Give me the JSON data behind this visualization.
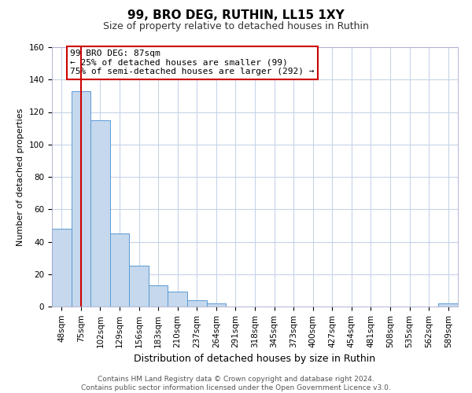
{
  "title": "99, BRO DEG, RUTHIN, LL15 1XY",
  "subtitle": "Size of property relative to detached houses in Ruthin",
  "xlabel": "Distribution of detached houses by size in Ruthin",
  "ylabel": "Number of detached properties",
  "bar_labels": [
    "48sqm",
    "75sqm",
    "102sqm",
    "129sqm",
    "156sqm",
    "183sqm",
    "210sqm",
    "237sqm",
    "264sqm",
    "291sqm",
    "318sqm",
    "345sqm",
    "373sqm",
    "400sqm",
    "427sqm",
    "454sqm",
    "481sqm",
    "508sqm",
    "535sqm",
    "562sqm",
    "589sqm"
  ],
  "bar_values": [
    48,
    133,
    115,
    45,
    25,
    13,
    9,
    4,
    2,
    0,
    0,
    0,
    0,
    0,
    0,
    0,
    0,
    0,
    0,
    0,
    2
  ],
  "bar_color": "#c5d8ed",
  "bar_edge_color": "#5b9bd5",
  "vline_x": 1,
  "vline_color": "#cc0000",
  "ylim": [
    0,
    160
  ],
  "annotation_text": "99 BRO DEG: 87sqm\n← 25% of detached houses are smaller (99)\n75% of semi-detached houses are larger (292) →",
  "annotation_box_color": "#ffffff",
  "annotation_box_edge": "#cc0000",
  "footer_text": "Contains HM Land Registry data © Crown copyright and database right 2024.\nContains public sector information licensed under the Open Government Licence v3.0.",
  "bg_color": "#ffffff",
  "grid_color": "#c8d4e8",
  "title_fontsize": 11,
  "subtitle_fontsize": 9,
  "xlabel_fontsize": 9,
  "ylabel_fontsize": 8,
  "tick_fontsize": 7.5,
  "ann_fontsize": 8,
  "footer_fontsize": 6.5
}
